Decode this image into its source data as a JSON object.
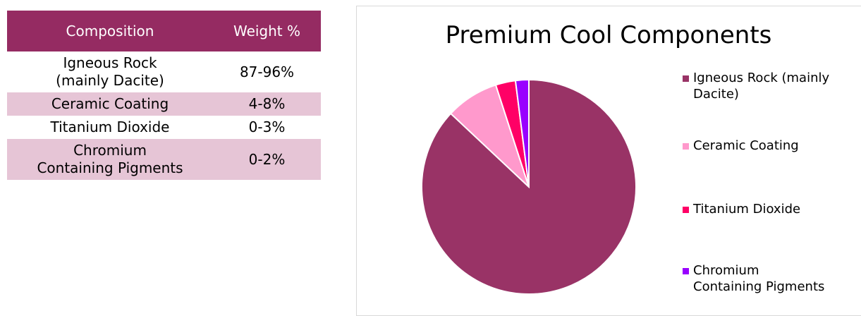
{
  "table": {
    "header": [
      "Composition",
      "Weight %"
    ],
    "rows": [
      [
        "Igneous Rock\n(mainly Dacite)",
        "87-96%"
      ],
      [
        "Ceramic Coating",
        "4-8%"
      ],
      [
        "Titanium Dioxide",
        "0-3%"
      ],
      [
        "Chromium\nContaining Pigments",
        "0-2%"
      ]
    ]
  },
  "chart_data": {
    "type": "pie",
    "title": "Premium Cool Components",
    "categories": [
      "Igneous Rock (mainly\nDacite)",
      "Ceramic Coating",
      "Titanium Dioxide",
      "Chromium\nContaining Pigments"
    ],
    "values": [
      87,
      8,
      3,
      2
    ],
    "colors": [
      "#993366",
      "#ff99cc",
      "#ff0066",
      "#9900ff"
    ]
  }
}
